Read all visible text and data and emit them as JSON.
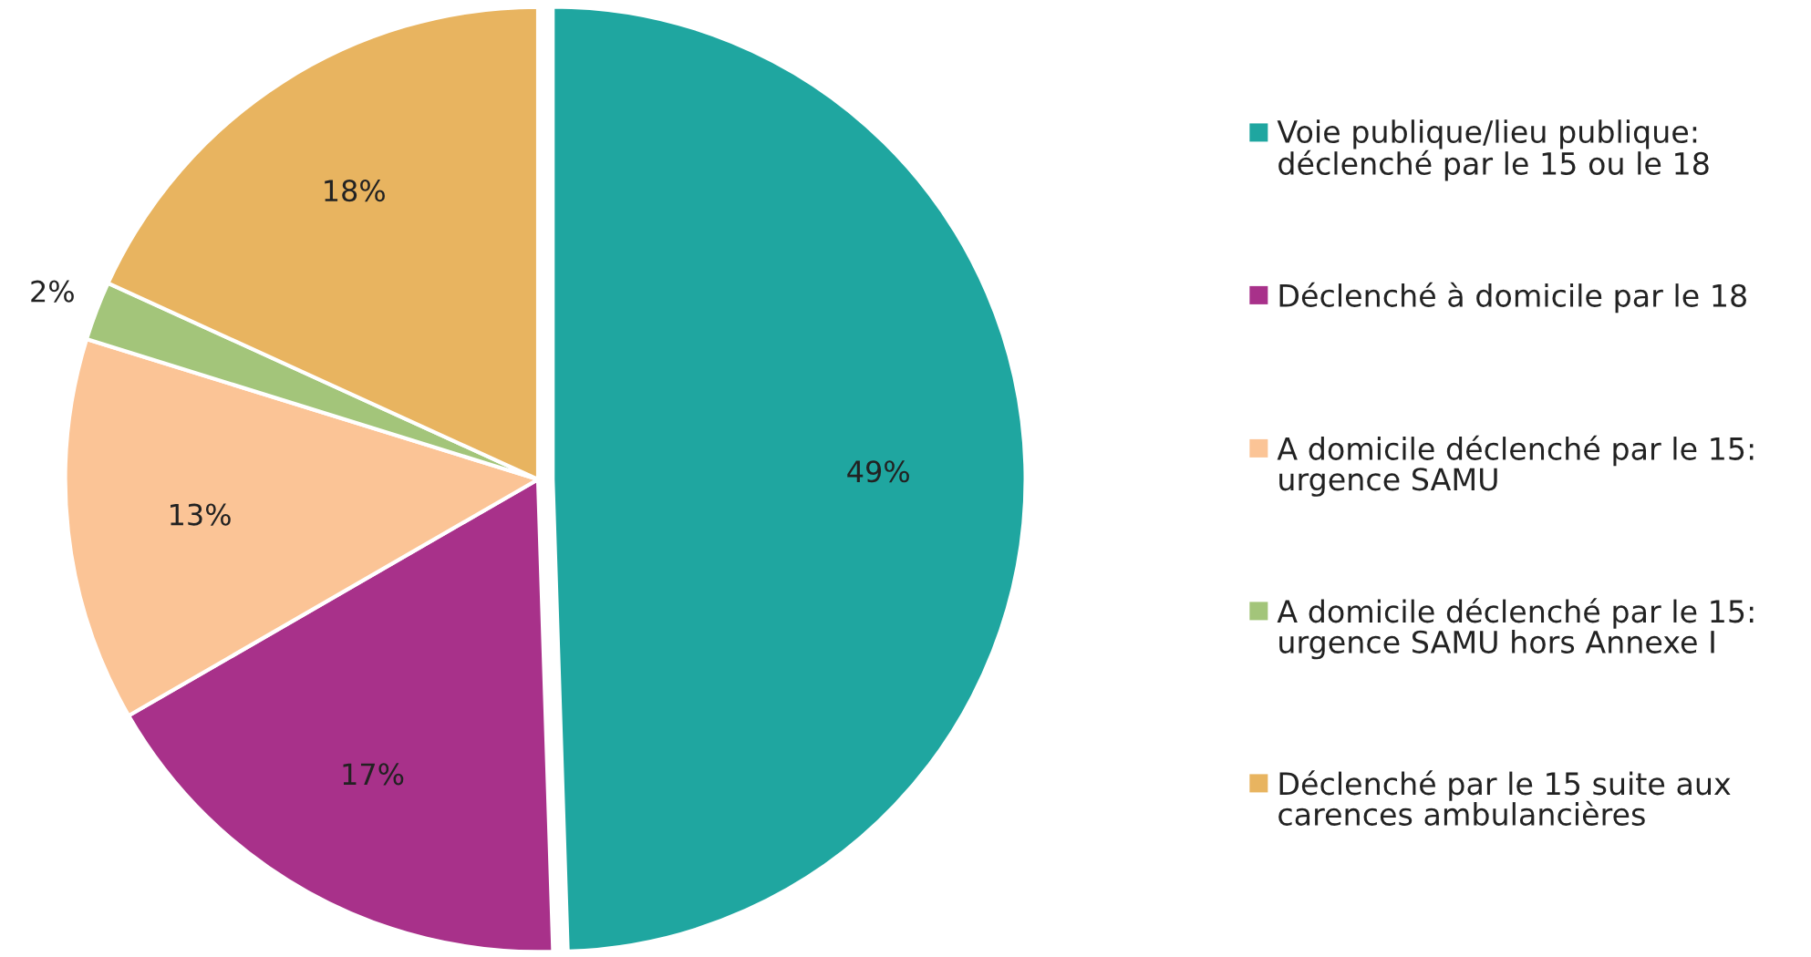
{
  "chart_data": {
    "type": "pie",
    "categories": [
      "Voie publique/lieu publique: déclenché par le 15 ou le 18",
      "Déclenché à domicile par le 18",
      "A domicile déclenché par le 15: urgence SAMU",
      "A domicile déclenché par le 15: urgence SAMU hors Annexe I",
      "Déclenché par le 15 suite aux carences ambulancières"
    ],
    "values": [
      49,
      17,
      13,
      2,
      18
    ],
    "colors": [
      "#1fa6a0",
      "#a8318a",
      "#fbc496",
      "#a3c57a",
      "#e8b460"
    ],
    "value_labels": [
      "49%",
      "17%",
      "13%",
      "2%",
      "18%"
    ],
    "legend": "right"
  }
}
